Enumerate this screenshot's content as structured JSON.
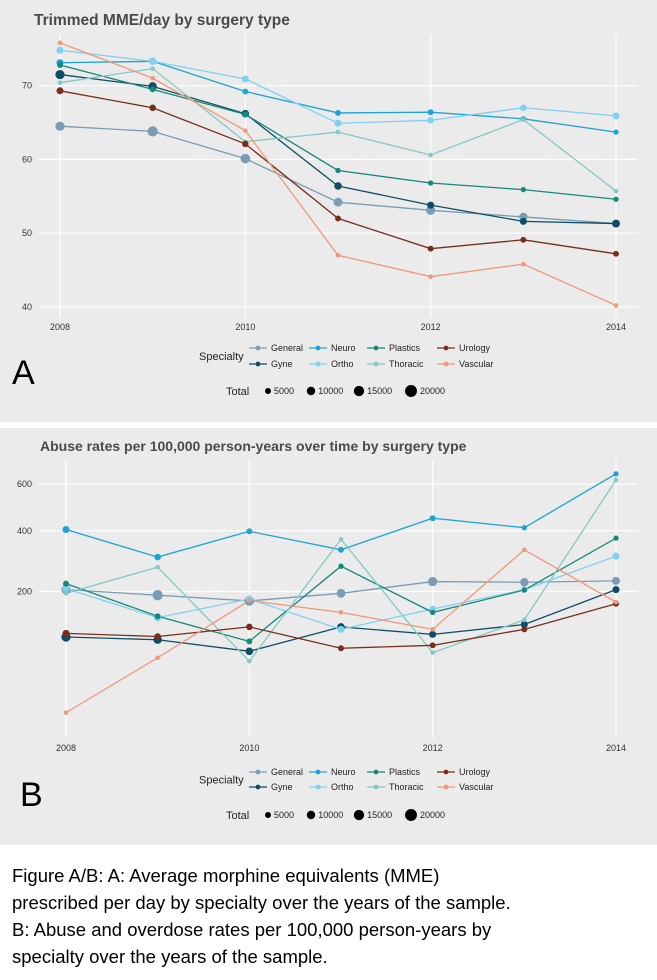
{
  "chart_data": [
    {
      "type": "line",
      "panel_label": "A",
      "title": "Trimmed MME/day by surgery type",
      "x": [
        2008,
        2009,
        2010,
        2011,
        2012,
        2013,
        2014
      ],
      "x_ticks": [
        "2008",
        "2010",
        "2012",
        "2014"
      ],
      "y_ticks": [
        "40",
        "50",
        "60",
        "70"
      ],
      "ylim": [
        38.5,
        77
      ],
      "grid": true,
      "series": [
        {
          "name": "General",
          "color": "#7a9db5",
          "values": [
            64.5,
            63.8,
            60.1,
            54.2,
            53.1,
            52.2,
            51.3
          ],
          "sizes": [
            12000,
            15000,
            13000,
            11000,
            12000,
            10000,
            8000
          ]
        },
        {
          "name": "Gyne",
          "color": "#0f4d66",
          "values": [
            71.5,
            69.9,
            66.2,
            56.4,
            53.8,
            51.6,
            51.3
          ],
          "sizes": [
            12000,
            10000,
            8000,
            8000,
            7000,
            7000,
            9000
          ]
        },
        {
          "name": "Neuro",
          "color": "#1da3d6",
          "values": [
            73.1,
            73.3,
            69.2,
            66.3,
            66.4,
            65.5,
            63.7
          ],
          "sizes": [
            7000,
            6000,
            5000,
            5000,
            5000,
            4000,
            4000
          ]
        },
        {
          "name": "Ortho",
          "color": "#7fd0f2",
          "values": [
            74.8,
            73.3,
            70.9,
            64.9,
            65.3,
            67.0,
            65.9
          ],
          "sizes": [
            7000,
            8000,
            7000,
            7000,
            6000,
            6000,
            7000
          ]
        },
        {
          "name": "Plastics",
          "color": "#17897a",
          "values": [
            72.8,
            69.5,
            66.1,
            58.5,
            56.8,
            55.9,
            54.6
          ],
          "sizes": [
            5000,
            5000,
            5000,
            4000,
            4000,
            4000,
            4000
          ]
        },
        {
          "name": "Thoracic",
          "color": "#84c9c4",
          "values": [
            70.4,
            72.3,
            62.4,
            63.7,
            60.6,
            65.4,
            55.7
          ],
          "sizes": [
            3000,
            3000,
            3000,
            3000,
            3000,
            3000,
            3000
          ]
        },
        {
          "name": "Urology",
          "color": "#7a2e1a",
          "values": [
            69.3,
            67.0,
            62.1,
            52.0,
            47.9,
            49.1,
            47.2
          ],
          "sizes": [
            7000,
            6000,
            6000,
            5000,
            5000,
            5000,
            5000
          ]
        },
        {
          "name": "Vascular",
          "color": "#f09878",
          "values": [
            75.8,
            71.0,
            63.9,
            47.0,
            44.1,
            45.8,
            40.2
          ],
          "sizes": [
            3000,
            3000,
            3000,
            3000,
            3000,
            3000,
            3000
          ]
        }
      ],
      "legend": {
        "title": "Specialty",
        "size_title": "Total",
        "size_labels": [
          "5000",
          "10000",
          "15000",
          "20000"
        ],
        "size_values": [
          5000,
          10000,
          15000,
          20000
        ],
        "placement": "bottom"
      }
    },
    {
      "type": "line",
      "panel_label": "B",
      "title": "Abuse rates per 100,000 person-years over time by surgery type",
      "y_scale": "sqrt",
      "x": [
        2008,
        2009,
        2010,
        2011,
        2012,
        2013,
        2014
      ],
      "x_ticks": [
        "2008",
        "2010",
        "2012",
        "2014"
      ],
      "y_ticks": [
        "200",
        "400",
        "600"
      ],
      "ylim": [
        0,
        720
      ],
      "grid": true,
      "series": [
        {
          "name": "General",
          "color": "#7a9db5",
          "values": [
            205,
            190,
            175,
            195,
            228,
            226,
            230
          ],
          "sizes": [
            12000,
            15000,
            13000,
            11000,
            12000,
            10000,
            9000
          ]
        },
        {
          "name": "Gyne",
          "color": "#0f4d66",
          "values": [
            95,
            90,
            70,
            115,
            100,
            120,
            205
          ],
          "sizes": [
            12000,
            10000,
            8000,
            8000,
            7000,
            7000,
            7000
          ]
        },
        {
          "name": "Neuro",
          "color": "#1da3d6",
          "values": [
            405,
            305,
            398,
            330,
            450,
            412,
            650
          ],
          "sizes": [
            7000,
            6000,
            5000,
            5000,
            5000,
            4000,
            4000
          ]
        },
        {
          "name": "Ortho",
          "color": "#7fd0f2",
          "values": [
            208,
            135,
            180,
            110,
            155,
            205,
            308
          ],
          "sizes": [
            7000,
            8000,
            7000,
            7000,
            6000,
            6000,
            7000
          ]
        },
        {
          "name": "Plastics",
          "color": "#17897a",
          "values": [
            222,
            138,
            87,
            275,
            147,
            204,
            372
          ],
          "sizes": [
            5000,
            5000,
            5000,
            4000,
            4000,
            4000,
            4000
          ]
        },
        {
          "name": "Thoracic",
          "color": "#84c9c4",
          "values": [
            195,
            272,
            55,
            368,
            68,
            130,
            620
          ],
          "sizes": [
            3000,
            3000,
            3000,
            3000,
            3000,
            3000,
            3000
          ]
        },
        {
          "name": "Urology",
          "color": "#7a2e1a",
          "values": [
            102,
            96,
            115,
            75,
            80,
            110,
            168
          ],
          "sizes": [
            7000,
            6000,
            6000,
            5000,
            5000,
            5000,
            5000
          ]
        },
        {
          "name": "Vascular",
          "color": "#f09878",
          "values": [
            6,
            60,
            176,
            147,
            110,
            330,
            172
          ],
          "sizes": [
            3000,
            3000,
            3000,
            3000,
            3000,
            3000,
            3000
          ]
        }
      ],
      "legend": {
        "title": "Specialty",
        "size_title": "Total",
        "size_labels": [
          "5000",
          "10000",
          "15000",
          "20000"
        ],
        "size_values": [
          5000,
          10000,
          15000,
          20000
        ],
        "placement": "bottom"
      }
    }
  ],
  "caption": {
    "lines": [
      "Figure A/B:  A:  Average morphine equivalents (MME)",
      "prescribed per day by specialty over the years of the sample.",
      "B:  Abuse and overdose rates per 100,000 person-years by",
      "specialty over the years of the sample."
    ]
  }
}
